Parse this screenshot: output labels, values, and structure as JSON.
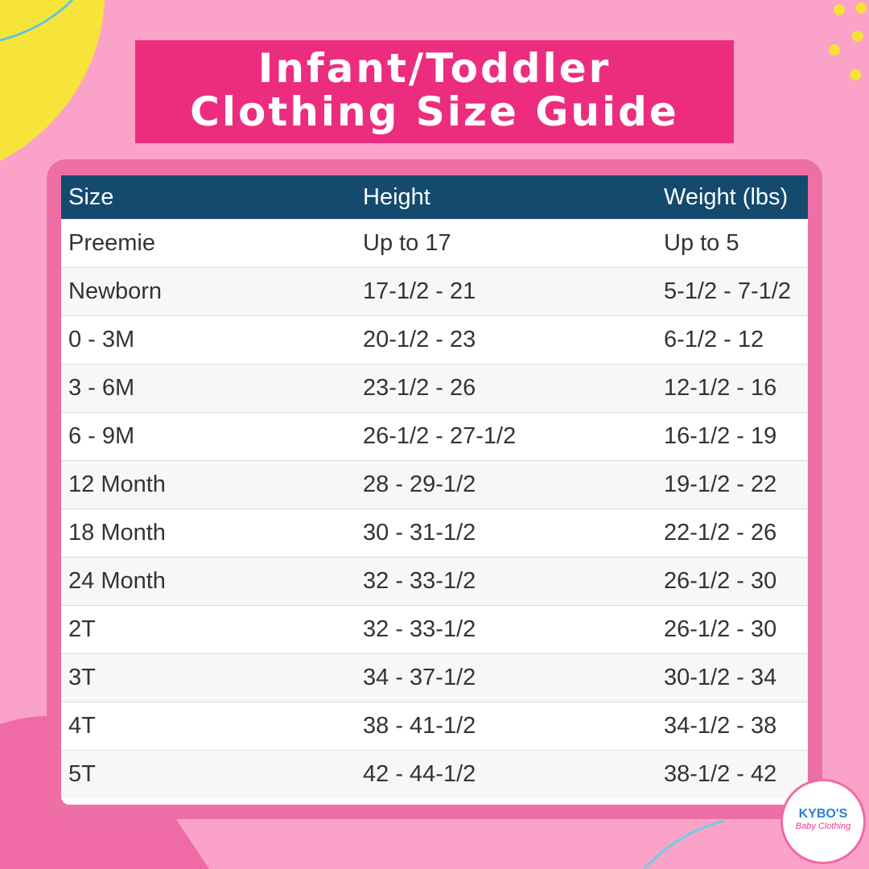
{
  "header": {
    "title_line1": "Infant/Toddler",
    "title_line2": "Clothing Size Guide"
  },
  "table": {
    "columns": [
      "Size",
      "Height",
      "Weight (lbs)"
    ],
    "rows": [
      [
        "Preemie",
        "Up to 17",
        "Up to 5"
      ],
      [
        "Newborn",
        "17-1/2 - 21",
        "5-1/2 - 7-1/2"
      ],
      [
        "0 - 3M",
        "20-1/2 - 23",
        "6-1/2 - 12"
      ],
      [
        "3 - 6M",
        "23-1/2 - 26",
        "12-1/2 - 16"
      ],
      [
        "6 - 9M",
        "26-1/2 - 27-1/2",
        "16-1/2 - 19"
      ],
      [
        "12 Month",
        "28 - 29-1/2",
        "19-1/2 - 22"
      ],
      [
        "18 Month",
        "30 - 31-1/2",
        "22-1/2 - 26"
      ],
      [
        "24 Month",
        "32 - 33-1/2",
        "26-1/2 - 30"
      ],
      [
        "2T",
        "32 - 33-1/2",
        "26-1/2 - 30"
      ],
      [
        "3T",
        "34 - 37-1/2",
        "30-1/2 - 34"
      ],
      [
        "4T",
        "38 - 41-1/2",
        "34-1/2 - 38"
      ],
      [
        "5T",
        "42 - 44-1/2",
        "38-1/2 - 42"
      ]
    ]
  },
  "logo": {
    "name": "KYBO'S",
    "tagline": "Baby Clothing"
  }
}
